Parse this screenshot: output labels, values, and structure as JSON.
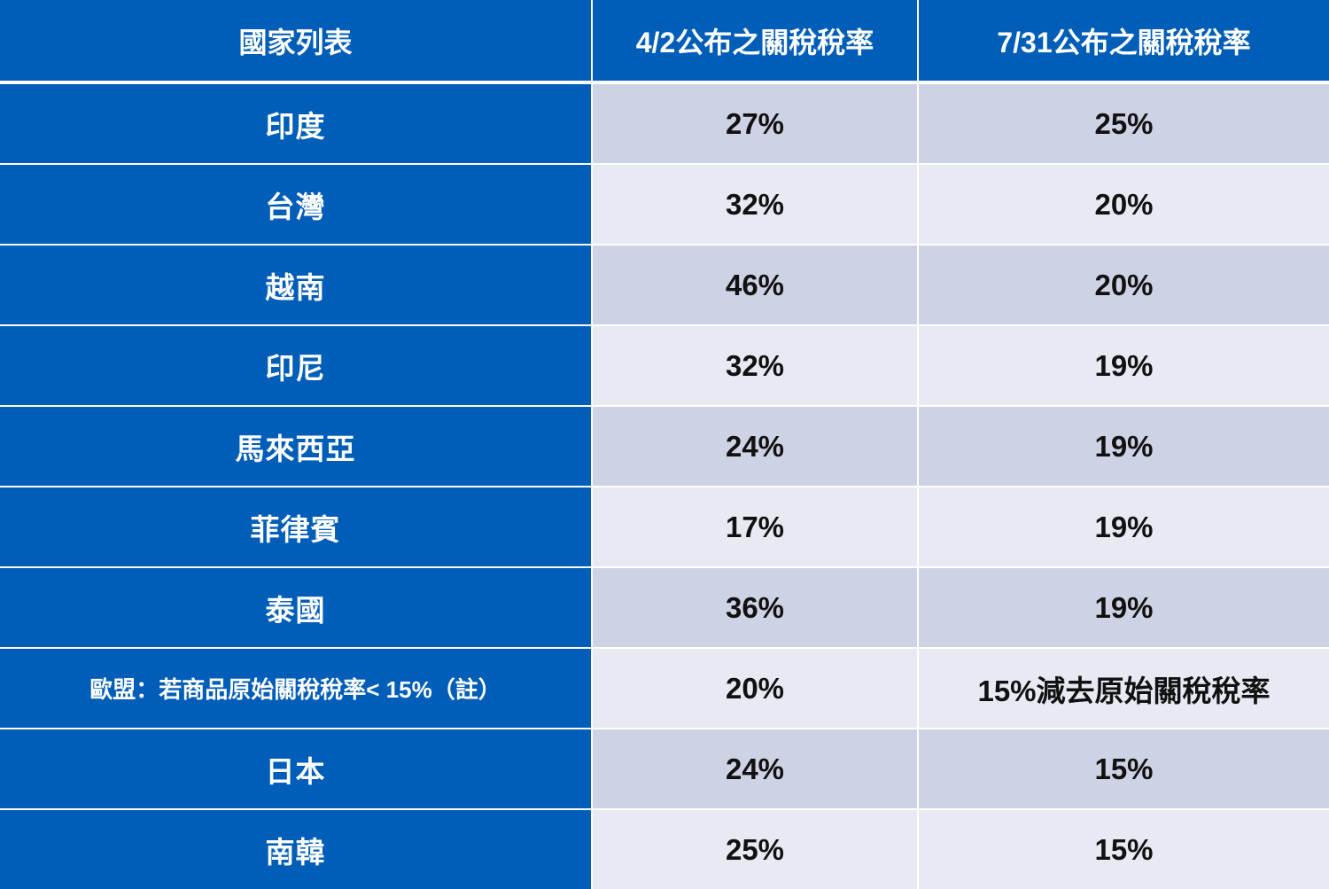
{
  "header": {
    "country": "國家列表",
    "rate_0402": "4/2公布之關稅稅率",
    "rate_0731": "7/31公布之關稅稅率"
  },
  "rows": [
    {
      "country": "印度",
      "rate_0402": "27%",
      "rate_0731": "25%"
    },
    {
      "country": "台灣",
      "rate_0402": "32%",
      "rate_0731": "20%"
    },
    {
      "country": "越南",
      "rate_0402": "46%",
      "rate_0731": "20%"
    },
    {
      "country": "印尼",
      "rate_0402": "32%",
      "rate_0731": "19%"
    },
    {
      "country": "馬來西亞",
      "rate_0402": "24%",
      "rate_0731": "19%"
    },
    {
      "country": "菲律賓",
      "rate_0402": "17%",
      "rate_0731": "19%"
    },
    {
      "country": "泰國",
      "rate_0402": "36%",
      "rate_0731": "19%"
    },
    {
      "country": "歐盟：若商品原始關稅稅率< 15%（註）",
      "rate_0402": "20%",
      "rate_0731": "15%減去原始關稅稅率"
    },
    {
      "country": "日本",
      "rate_0402": "24%",
      "rate_0731": "15%"
    },
    {
      "country": "南韓",
      "rate_0402": "25%",
      "rate_0731": "15%"
    }
  ],
  "colors": {
    "header_bg": "#005eb8",
    "country_bg": "#005eb8",
    "row_odd_bg": "#cdd2e5",
    "row_even_bg": "#e7eaf3"
  }
}
